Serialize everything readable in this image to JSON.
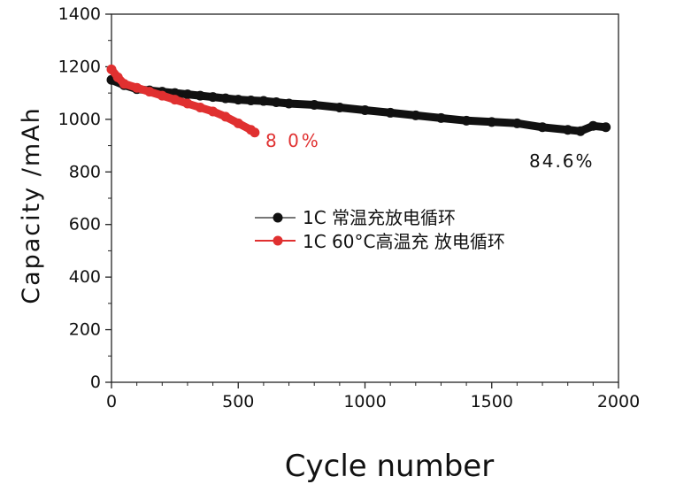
{
  "chart_data": {
    "type": "scatter",
    "title": "",
    "xlabel": "Cycle number",
    "ylabel": "Capacity /mAh",
    "xlim": [
      0,
      2000
    ],
    "ylim": [
      0,
      1400
    ],
    "x_ticks": [
      0,
      500,
      1000,
      1500,
      2000
    ],
    "y_ticks": [
      0,
      200,
      400,
      600,
      800,
      1000,
      1200,
      1400
    ],
    "grid": false,
    "legend_position": "center",
    "series": [
      {
        "name": "1C 常温充放电循环",
        "color": "#111111",
        "marker": "circle",
        "x": [
          0,
          50,
          100,
          150,
          200,
          250,
          300,
          350,
          400,
          450,
          500,
          550,
          600,
          650,
          700,
          800,
          900,
          1000,
          1100,
          1200,
          1300,
          1400,
          1500,
          1600,
          1700,
          1800,
          1850,
          1900,
          1950
        ],
        "y": [
          1150,
          1130,
          1115,
          1110,
          1105,
          1100,
          1095,
          1090,
          1085,
          1080,
          1075,
          1072,
          1070,
          1065,
          1060,
          1055,
          1045,
          1035,
          1025,
          1015,
          1005,
          995,
          990,
          985,
          970,
          960,
          955,
          975,
          970
        ]
      },
      {
        "name": "1C 60°C高温充 放电循环",
        "color": "#e03030",
        "marker": "circle",
        "x": [
          0,
          25,
          50,
          100,
          150,
          200,
          250,
          300,
          350,
          400,
          450,
          500,
          550,
          565
        ],
        "y": [
          1190,
          1160,
          1135,
          1120,
          1105,
          1090,
          1075,
          1060,
          1045,
          1030,
          1010,
          985,
          960,
          950
        ]
      }
    ],
    "annotations": [
      {
        "text": "8 0%",
        "x": 610,
        "y": 930,
        "color": "#e03030"
      },
      {
        "text": "84.6%",
        "x": 1630,
        "y": 830,
        "color": "#111111"
      }
    ]
  }
}
